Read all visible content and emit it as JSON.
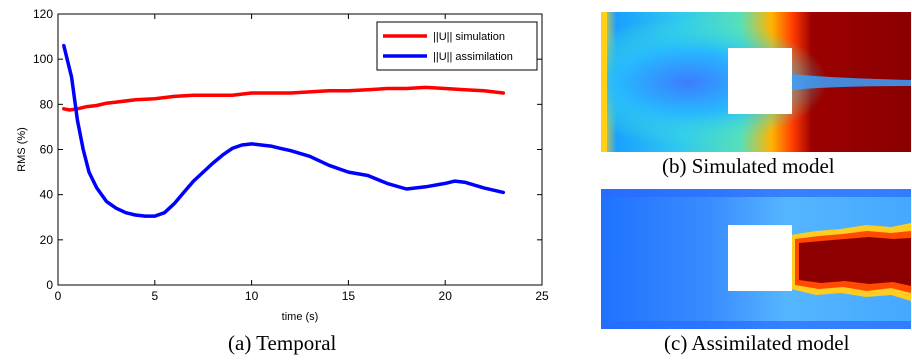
{
  "captions": {
    "a": "(a)  Temporal",
    "b": "(b)  Simulated model",
    "c": "(c)  Assimilated model"
  },
  "chart_data": {
    "type": "line",
    "title": "",
    "xlabel": "time (s)",
    "ylabel": "RMS (%)",
    "xlim": [
      0,
      25
    ],
    "ylim": [
      0,
      120
    ],
    "xticks": [
      0,
      5,
      10,
      15,
      20,
      25
    ],
    "yticks": [
      0,
      20,
      40,
      60,
      80,
      100,
      120
    ],
    "grid": false,
    "legend_position": "top-right",
    "series": [
      {
        "name": "||U|| simulation",
        "color": "#ff0000",
        "x": [
          0.3,
          0.6,
          1.0,
          1.5,
          2.0,
          2.5,
          3.0,
          4.0,
          5.0,
          6.0,
          7.0,
          8.0,
          9.0,
          10.0,
          11.0,
          12.0,
          13.0,
          14.0,
          15.0,
          16.0,
          17.0,
          18.0,
          19.0,
          20.0,
          21.0,
          22.0,
          23.0
        ],
        "y": [
          78,
          77.5,
          78,
          79,
          79.5,
          80.5,
          81,
          82,
          82.5,
          83.5,
          84,
          84,
          84,
          85,
          85,
          85,
          85.5,
          86,
          86,
          86.5,
          87,
          87,
          87.5,
          87,
          86.5,
          86,
          85
        ]
      },
      {
        "name": "||U|| assimilation",
        "color": "#0000ff",
        "x": [
          0.3,
          0.7,
          1.0,
          1.3,
          1.6,
          2.0,
          2.5,
          3.0,
          3.5,
          4.0,
          4.5,
          5.0,
          5.5,
          6.0,
          6.5,
          7.0,
          7.5,
          8.0,
          8.5,
          9.0,
          9.5,
          10.0,
          10.5,
          11.0,
          11.5,
          12.0,
          13.0,
          14.0,
          15.0,
          16.0,
          17.0,
          18.0,
          19.0,
          20.0,
          20.5,
          21.0,
          22.0,
          23.0
        ],
        "y": [
          106,
          92,
          73,
          60,
          50,
          43,
          37,
          34,
          32,
          31,
          30.5,
          30.5,
          32,
          36,
          41,
          46,
          50,
          54,
          57.5,
          60.5,
          62,
          62.5,
          62,
          61.5,
          60.5,
          59.5,
          57,
          53,
          50,
          48.5,
          45,
          42.5,
          43.5,
          45,
          46,
          45.5,
          43,
          41
        ]
      }
    ]
  }
}
